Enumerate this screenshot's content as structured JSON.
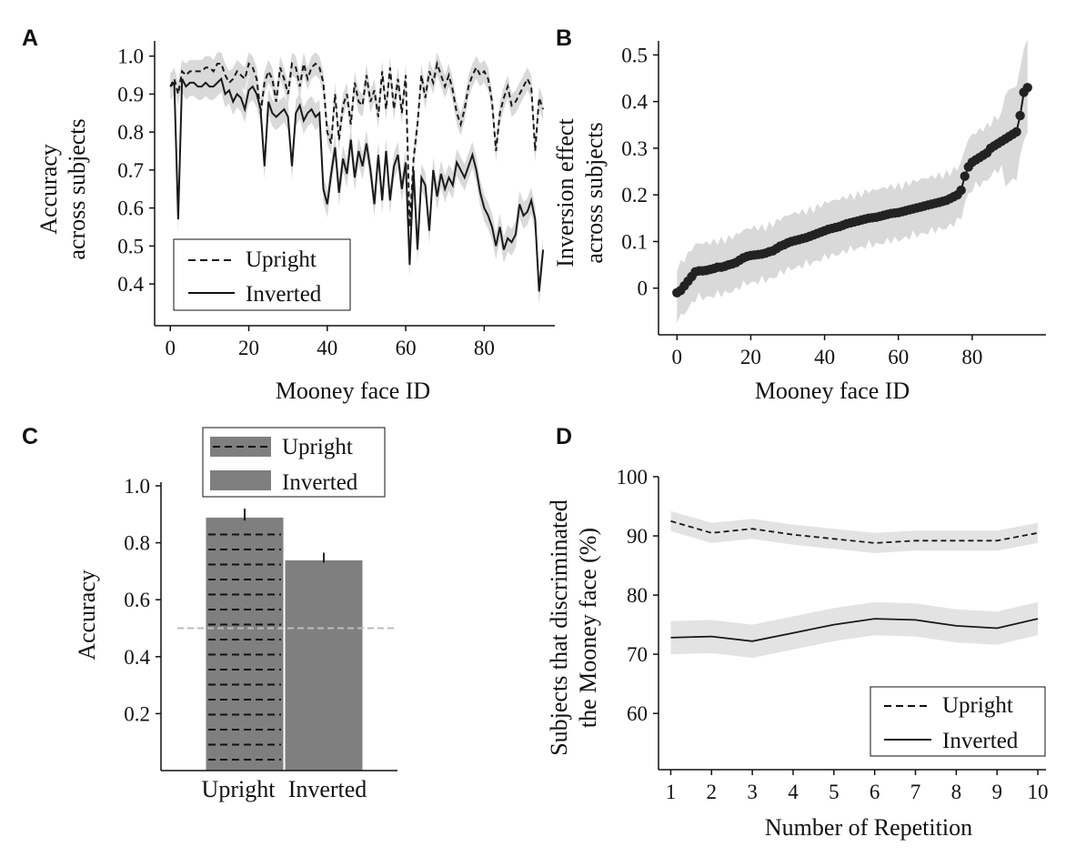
{
  "chart_data": [
    {
      "panel": "A",
      "type": "line",
      "xlabel": "Mooney face ID",
      "ylabel": [
        "Accuracy",
        "across subjects"
      ],
      "xticks": [
        0,
        20,
        40,
        60,
        80
      ],
      "yticks": [
        0.4,
        0.5,
        0.6,
        0.7,
        0.8,
        0.9,
        1.0
      ],
      "ytick_labels": [
        "0.4",
        "0.5",
        "0.6",
        "0.7",
        "0.8",
        "0.9",
        "1.0"
      ],
      "xlim": [
        -4,
        98
      ],
      "ylim": [
        0.29,
        1.04
      ],
      "legend": "bottom-left",
      "series": [
        {
          "name": "Upright",
          "style": "dashed",
          "x": [
            0,
            1,
            2,
            3,
            4,
            5,
            6,
            7,
            8,
            9,
            10,
            11,
            12,
            13,
            14,
            15,
            16,
            17,
            18,
            19,
            20,
            21,
            22,
            23,
            24,
            25,
            26,
            27,
            28,
            29,
            30,
            31,
            32,
            33,
            34,
            35,
            36,
            37,
            38,
            39,
            40,
            41,
            42,
            43,
            44,
            45,
            46,
            47,
            48,
            49,
            50,
            51,
            52,
            53,
            54,
            55,
            56,
            57,
            58,
            59,
            60,
            61,
            62,
            63,
            64,
            65,
            66,
            67,
            68,
            69,
            70,
            71,
            72,
            73,
            74,
            75,
            76,
            77,
            78,
            79,
            80,
            81,
            82,
            83,
            84,
            85,
            86,
            87,
            88,
            89,
            90,
            91,
            92,
            93,
            94,
            95
          ],
          "values": [
            0.92,
            0.94,
            0.9,
            0.96,
            0.95,
            0.96,
            0.96,
            0.96,
            0.96,
            0.97,
            0.97,
            0.96,
            0.98,
            0.98,
            0.95,
            0.93,
            0.94,
            0.96,
            0.95,
            0.94,
            0.98,
            0.97,
            0.94,
            0.85,
            0.93,
            0.96,
            0.94,
            0.88,
            0.97,
            0.94,
            0.9,
            0.98,
            0.97,
            0.92,
            0.98,
            0.94,
            0.97,
            0.98,
            0.97,
            0.93,
            0.8,
            0.77,
            0.9,
            0.78,
            0.87,
            0.9,
            0.82,
            0.93,
            0.88,
            0.87,
            0.95,
            0.88,
            0.91,
            0.84,
            0.96,
            0.86,
            0.97,
            0.86,
            0.94,
            0.85,
            0.95,
            0.55,
            0.73,
            0.82,
            0.95,
            0.89,
            0.96,
            0.93,
            0.98,
            0.95,
            0.92,
            0.95,
            0.91,
            0.85,
            0.82,
            0.86,
            0.92,
            0.95,
            0.97,
            0.95,
            0.96,
            0.94,
            0.88,
            0.75,
            0.85,
            0.89,
            0.92,
            0.87,
            0.88,
            0.9,
            0.92,
            0.94,
            0.92,
            0.75,
            0.89,
            0.86
          ]
        },
        {
          "name": "Inverted",
          "style": "solid",
          "x": [
            0,
            1,
            2,
            3,
            4,
            5,
            6,
            7,
            8,
            9,
            10,
            11,
            12,
            13,
            14,
            15,
            16,
            17,
            18,
            19,
            20,
            21,
            22,
            23,
            24,
            25,
            26,
            27,
            28,
            29,
            30,
            31,
            32,
            33,
            34,
            35,
            36,
            37,
            38,
            39,
            40,
            41,
            42,
            43,
            44,
            45,
            46,
            47,
            48,
            49,
            50,
            51,
            52,
            53,
            54,
            55,
            56,
            57,
            58,
            59,
            60,
            61,
            62,
            63,
            64,
            65,
            66,
            67,
            68,
            69,
            70,
            71,
            72,
            73,
            74,
            75,
            76,
            77,
            78,
            79,
            80,
            81,
            82,
            83,
            84,
            85,
            86,
            87,
            88,
            89,
            90,
            91,
            92,
            93,
            94,
            95
          ],
          "values": [
            0.92,
            0.93,
            0.57,
            0.94,
            0.92,
            0.93,
            0.93,
            0.92,
            0.92,
            0.93,
            0.92,
            0.92,
            0.93,
            0.94,
            0.9,
            0.91,
            0.88,
            0.9,
            0.89,
            0.86,
            0.91,
            0.92,
            0.9,
            0.86,
            0.71,
            0.88,
            0.85,
            0.84,
            0.85,
            0.86,
            0.84,
            0.71,
            0.85,
            0.87,
            0.83,
            0.85,
            0.86,
            0.84,
            0.85,
            0.65,
            0.61,
            0.69,
            0.76,
            0.64,
            0.73,
            0.69,
            0.78,
            0.68,
            0.75,
            0.71,
            0.77,
            0.7,
            0.61,
            0.74,
            0.62,
            0.75,
            0.62,
            0.71,
            0.74,
            0.65,
            0.72,
            0.45,
            0.7,
            0.49,
            0.68,
            0.66,
            0.54,
            0.7,
            0.63,
            0.69,
            0.65,
            0.68,
            0.66,
            0.72,
            0.7,
            0.68,
            0.71,
            0.74,
            0.7,
            0.64,
            0.6,
            0.58,
            0.55,
            0.5,
            0.55,
            0.49,
            0.52,
            0.51,
            0.53,
            0.61,
            0.58,
            0.59,
            0.62,
            0.57,
            0.38,
            0.49
          ]
        }
      ]
    },
    {
      "panel": "B",
      "type": "scatter",
      "xlabel": "Mooney face ID",
      "ylabel": [
        "Inversion effect",
        "across subjects"
      ],
      "xticks": [
        0,
        20,
        40,
        60,
        80
      ],
      "yticks": [
        0,
        0.1,
        0.2,
        0.3,
        0.4,
        0.5
      ],
      "ytick_labels": [
        "0",
        "0.1",
        "0.2",
        "0.3",
        "0.4",
        "0.5"
      ],
      "xlim": [
        -5,
        100
      ],
      "ylim": [
        -0.1,
        0.53
      ],
      "x": [
        0,
        1,
        2,
        3,
        4,
        5,
        6,
        7,
        8,
        9,
        10,
        11,
        12,
        13,
        14,
        15,
        16,
        17,
        18,
        19,
        20,
        21,
        22,
        23,
        24,
        25,
        26,
        27,
        28,
        29,
        30,
        31,
        32,
        33,
        34,
        35,
        36,
        37,
        38,
        39,
        40,
        41,
        42,
        43,
        44,
        45,
        46,
        47,
        48,
        49,
        50,
        51,
        52,
        53,
        54,
        55,
        56,
        57,
        58,
        59,
        60,
        61,
        62,
        63,
        64,
        65,
        66,
        67,
        68,
        69,
        70,
        71,
        72,
        73,
        74,
        75,
        76,
        77,
        78,
        79,
        80,
        81,
        82,
        83,
        84,
        85,
        86,
        87,
        88,
        89,
        90,
        91,
        92,
        93,
        94,
        95
      ],
      "values": [
        -0.01,
        -0.005,
        0.005,
        0.015,
        0.025,
        0.035,
        0.037,
        0.037,
        0.038,
        0.04,
        0.042,
        0.045,
        0.045,
        0.047,
        0.05,
        0.052,
        0.055,
        0.06,
        0.065,
        0.068,
        0.07,
        0.071,
        0.072,
        0.073,
        0.075,
        0.078,
        0.08,
        0.085,
        0.09,
        0.093,
        0.097,
        0.1,
        0.102,
        0.104,
        0.106,
        0.108,
        0.111,
        0.114,
        0.117,
        0.12,
        0.123,
        0.126,
        0.128,
        0.13,
        0.132,
        0.135,
        0.138,
        0.14,
        0.142,
        0.144,
        0.146,
        0.148,
        0.15,
        0.151,
        0.152,
        0.154,
        0.156,
        0.158,
        0.16,
        0.161,
        0.162,
        0.164,
        0.166,
        0.168,
        0.17,
        0.172,
        0.174,
        0.176,
        0.178,
        0.18,
        0.182,
        0.184,
        0.186,
        0.188,
        0.192,
        0.196,
        0.2,
        0.21,
        0.24,
        0.26,
        0.27,
        0.275,
        0.28,
        0.285,
        0.29,
        0.3,
        0.305,
        0.31,
        0.315,
        0.32,
        0.325,
        0.33,
        0.335,
        0.37,
        0.42,
        0.43
      ]
    },
    {
      "panel": "C",
      "type": "bar",
      "categories": [
        "Upright",
        "Inverted"
      ],
      "values": [
        0.89,
        0.74
      ],
      "errors": [
        0.03,
        0.025
      ],
      "chance_level": 0.5,
      "ylabel": "Accuracy",
      "yticks": [
        0.2,
        0.4,
        0.6,
        0.8,
        1.0
      ],
      "ytick_labels": [
        "0.2",
        "0.4",
        "0.6",
        "0.8",
        "1.0"
      ],
      "ylim": [
        0,
        1.0
      ],
      "legend": "top",
      "series_names": [
        "Upright",
        "Inverted"
      ],
      "bar_color": "#7f7f7f"
    },
    {
      "panel": "D",
      "type": "line",
      "xlabel": "Number of Repetition",
      "ylabel": [
        "Subjects that discriminated",
        "the Mooney face (%)"
      ],
      "xticks": [
        1,
        2,
        3,
        4,
        5,
        6,
        7,
        8,
        9,
        10
      ],
      "xtick_labels": [
        "1",
        "2",
        "3",
        "4",
        "5",
        "6",
        "7",
        "8",
        "9",
        "10"
      ],
      "yticks": [
        60,
        70,
        80,
        90,
        100
      ],
      "ytick_labels": [
        "60",
        "70",
        "80",
        "90",
        "100"
      ],
      "xlim": [
        0.7,
        10.2
      ],
      "ylim": [
        50.5,
        100
      ],
      "legend": "bottom-right",
      "series": [
        {
          "name": "Upright",
          "style": "dashed",
          "x": [
            1,
            2,
            3,
            4,
            5,
            6,
            7,
            8,
            9,
            10
          ],
          "values": [
            92.5,
            90.5,
            91.2,
            90.2,
            89.5,
            88.8,
            89.2,
            89.2,
            89.2,
            90.5
          ],
          "band": 1.7
        },
        {
          "name": "Inverted",
          "style": "solid",
          "x": [
            1,
            2,
            3,
            4,
            5,
            6,
            7,
            8,
            9,
            10
          ],
          "values": [
            72.8,
            73.0,
            72.2,
            73.6,
            75.0,
            76.0,
            75.8,
            74.8,
            74.4,
            76.0
          ],
          "band": 2.8
        }
      ]
    }
  ],
  "panel_labels": [
    "A",
    "B",
    "C",
    "D"
  ],
  "colors": {
    "band": "#d9d9d9",
    "line": "#1a1a1a",
    "bar": "#7f7f7f",
    "chance": "#bdbdbd"
  }
}
